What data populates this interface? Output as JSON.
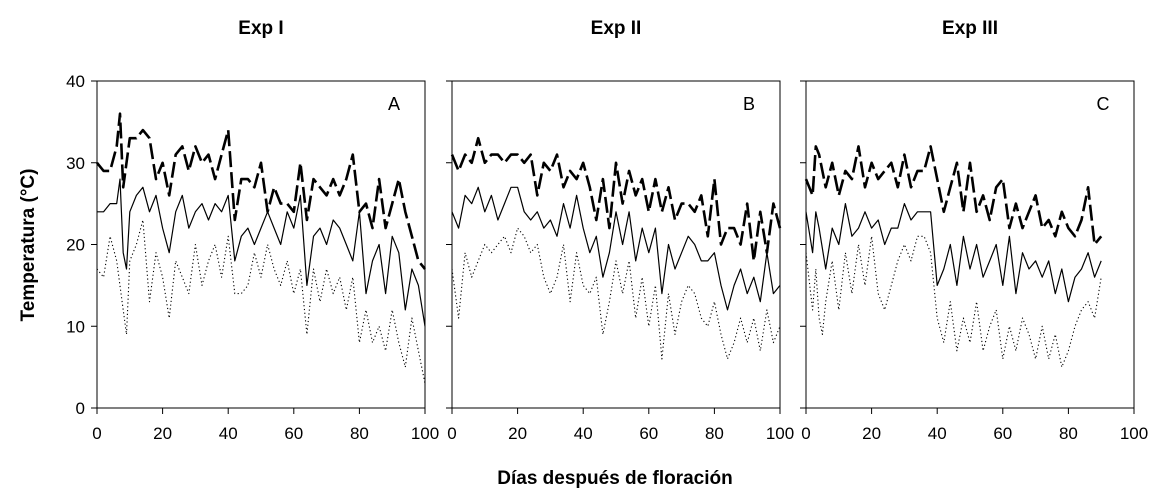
{
  "chart_data": {
    "type": "line",
    "ylabel": "Temperatura (°C)",
    "xlabel": "Días después de floración",
    "ylim": [
      0,
      40
    ],
    "yticks": [
      "0",
      "10",
      "20",
      "30",
      "40"
    ],
    "xticks": [
      "0",
      "20",
      "40",
      "60",
      "80",
      "100"
    ],
    "grid": false,
    "line_styles": {
      "max": "dashed-thick",
      "mean": "solid",
      "min": "dotted"
    },
    "panels": [
      {
        "title": "Exp I",
        "letter": "A",
        "xlim": [
          0,
          100
        ],
        "series": [
          {
            "style": "max",
            "x": [
              0,
              2,
              4,
              6,
              7,
              8,
              10,
              12,
              14,
              16,
              18,
              20,
              22,
              24,
              26,
              28,
              30,
              32,
              34,
              36,
              38,
              40,
              42,
              44,
              46,
              48,
              50,
              52,
              54,
              56,
              58,
              60,
              62,
              64,
              66,
              68,
              70,
              72,
              74,
              76,
              78,
              80,
              82,
              84,
              86,
              88,
              90,
              92,
              94,
              96,
              98,
              100
            ],
            "values": [
              30,
              29,
              29,
              32,
              36,
              27,
              33,
              33,
              34,
              33,
              28,
              30,
              26,
              31,
              32,
              29,
              32,
              30,
              31,
              28,
              31,
              34,
              23,
              28,
              28,
              27,
              30,
              24,
              27,
              25,
              25,
              24,
              30,
              23,
              28,
              27,
              26,
              28,
              26,
              28,
              31,
              24,
              25,
              22,
              28,
              22,
              25,
              28,
              24,
              21,
              18,
              17
            ]
          },
          {
            "style": "mean",
            "x": [
              0,
              2,
              4,
              6,
              7,
              8,
              9,
              10,
              12,
              14,
              16,
              18,
              20,
              22,
              24,
              26,
              28,
              30,
              32,
              34,
              36,
              38,
              40,
              42,
              44,
              46,
              48,
              50,
              52,
              54,
              56,
              58,
              60,
              62,
              64,
              66,
              68,
              70,
              72,
              74,
              76,
              78,
              80,
              82,
              84,
              86,
              88,
              90,
              92,
              94,
              96,
              98,
              100
            ],
            "values": [
              24,
              24,
              25,
              25,
              28,
              19,
              17,
              24,
              26,
              27,
              24,
              26,
              22,
              19,
              24,
              26,
              22,
              24,
              25,
              23,
              25,
              24,
              26,
              18,
              21,
              22,
              20,
              22,
              24,
              22,
              20,
              24,
              22,
              26,
              15,
              21,
              22,
              20,
              23,
              22,
              20,
              18,
              24,
              14,
              18,
              20,
              14,
              21,
              19,
              12,
              17,
              15,
              10
            ]
          },
          {
            "style": "min",
            "x": [
              0,
              2,
              4,
              6,
              8,
              9,
              10,
              12,
              14,
              16,
              18,
              20,
              22,
              24,
              26,
              28,
              30,
              32,
              34,
              36,
              38,
              40,
              42,
              44,
              46,
              48,
              50,
              52,
              54,
              56,
              58,
              60,
              62,
              64,
              66,
              68,
              70,
              72,
              74,
              76,
              78,
              80,
              82,
              84,
              86,
              88,
              90,
              92,
              94,
              96,
              98,
              100
            ],
            "values": [
              17,
              16,
              21,
              18,
              12,
              9,
              18,
              20,
              23,
              13,
              19,
              16,
              11,
              18,
              16,
              14,
              20,
              15,
              18,
              20,
              16,
              21,
              14,
              14,
              15,
              19,
              16,
              20,
              17,
              15,
              18,
              14,
              17,
              9,
              17,
              13,
              17,
              14,
              16,
              12,
              16,
              8,
              12,
              8,
              10,
              7,
              12,
              8,
              5,
              11,
              7,
              3
            ]
          }
        ]
      },
      {
        "title": "Exp II",
        "letter": "B",
        "xlim": [
          0,
          100
        ],
        "series": [
          {
            "style": "max",
            "x": [
              0,
              2,
              4,
              6,
              8,
              10,
              12,
              14,
              16,
              18,
              20,
              22,
              24,
              26,
              28,
              30,
              32,
              34,
              36,
              38,
              40,
              42,
              44,
              46,
              48,
              50,
              52,
              54,
              56,
              58,
              60,
              62,
              64,
              66,
              68,
              70,
              72,
              74,
              76,
              78,
              80,
              82,
              84,
              86,
              88,
              90,
              92,
              94,
              96,
              98,
              100
            ],
            "values": [
              31,
              29,
              31,
              30,
              33,
              30,
              31,
              31,
              30,
              31,
              31,
              30,
              31,
              26,
              30,
              29,
              31,
              27,
              29,
              28,
              30,
              27,
              23,
              28,
              22,
              30,
              25,
              29,
              26,
              28,
              24,
              28,
              24,
              27,
              23,
              25,
              25,
              24,
              26,
              21,
              28,
              20,
              22,
              22,
              20,
              25,
              18,
              24,
              19,
              25,
              22
            ]
          },
          {
            "style": "mean",
            "x": [
              0,
              2,
              4,
              6,
              8,
              10,
              12,
              14,
              16,
              18,
              20,
              22,
              24,
              26,
              28,
              30,
              32,
              34,
              36,
              38,
              40,
              42,
              44,
              46,
              48,
              50,
              52,
              54,
              56,
              58,
              60,
              62,
              64,
              66,
              68,
              70,
              72,
              74,
              76,
              78,
              80,
              82,
              84,
              86,
              88,
              90,
              92,
              94,
              96,
              98,
              100
            ],
            "values": [
              24,
              22,
              26,
              25,
              27,
              24,
              26,
              23,
              25,
              27,
              27,
              24,
              23,
              24,
              22,
              23,
              21,
              25,
              22,
              26,
              22,
              19,
              21,
              16,
              19,
              24,
              20,
              24,
              18,
              22,
              19,
              22,
              14,
              20,
              17,
              19,
              21,
              20,
              18,
              18,
              19,
              15,
              12,
              15,
              17,
              14,
              16,
              13,
              19,
              14,
              15
            ]
          },
          {
            "style": "min",
            "x": [
              0,
              2,
              4,
              6,
              8,
              10,
              12,
              14,
              16,
              18,
              20,
              22,
              24,
              26,
              28,
              30,
              32,
              34,
              36,
              38,
              40,
              42,
              44,
              46,
              48,
              50,
              52,
              54,
              56,
              58,
              60,
              62,
              64,
              66,
              68,
              70,
              72,
              74,
              76,
              78,
              80,
              82,
              84,
              86,
              88,
              90,
              92,
              94,
              96,
              98,
              100
            ],
            "values": [
              17,
              11,
              19,
              16,
              18,
              20,
              19,
              20,
              21,
              19,
              22,
              21,
              19,
              20,
              16,
              14,
              16,
              20,
              13,
              19,
              15,
              14,
              16,
              9,
              13,
              18,
              14,
              18,
              11,
              16,
              10,
              15,
              6,
              14,
              9,
              13,
              15,
              14,
              11,
              10,
              13,
              9,
              6,
              8,
              11,
              8,
              11,
              7,
              12,
              8,
              10
            ]
          }
        ]
      },
      {
        "title": "Exp III",
        "letter": "C",
        "xlim": [
          0,
          100
        ],
        "series": [
          {
            "style": "max",
            "x": [
              0,
              2,
              3,
              4,
              6,
              8,
              10,
              12,
              14,
              16,
              18,
              20,
              22,
              24,
              26,
              28,
              30,
              32,
              34,
              36,
              38,
              40,
              42,
              44,
              46,
              48,
              50,
              52,
              54,
              56,
              58,
              60,
              62,
              64,
              66,
              68,
              70,
              72,
              74,
              76,
              78,
              80,
              82,
              84,
              86,
              88,
              90
            ],
            "values": [
              28,
              26,
              32,
              31,
              27,
              30,
              26,
              29,
              28,
              32,
              27,
              30,
              28,
              29,
              30,
              27,
              31,
              27,
              29,
              29,
              32,
              28,
              24,
              27,
              30,
              24,
              30,
              24,
              26,
              23,
              27,
              28,
              22,
              25,
              22,
              24,
              26,
              22,
              23,
              21,
              24,
              22,
              21,
              23,
              27,
              20,
              21
            ]
          },
          {
            "style": "mean",
            "x": [
              0,
              2,
              3,
              4,
              6,
              8,
              10,
              12,
              14,
              16,
              18,
              20,
              22,
              24,
              26,
              28,
              30,
              32,
              34,
              36,
              38,
              40,
              42,
              44,
              46,
              48,
              50,
              52,
              54,
              56,
              58,
              60,
              62,
              64,
              66,
              68,
              70,
              72,
              74,
              76,
              78,
              80,
              82,
              84,
              86,
              88,
              90
            ],
            "values": [
              24,
              19,
              24,
              22,
              17,
              22,
              20,
              25,
              21,
              22,
              24,
              22,
              23,
              20,
              22,
              22,
              25,
              23,
              24,
              24,
              24,
              15,
              17,
              20,
              15,
              21,
              17,
              20,
              16,
              18,
              20,
              15,
              21,
              14,
              19,
              17,
              18,
              16,
              18,
              14,
              17,
              13,
              16,
              17,
              19,
              16,
              18
            ]
          },
          {
            "style": "min",
            "x": [
              0,
              2,
              3,
              4,
              5,
              6,
              8,
              10,
              12,
              14,
              16,
              18,
              20,
              22,
              24,
              26,
              28,
              30,
              32,
              34,
              36,
              38,
              40,
              42,
              44,
              46,
              48,
              50,
              52,
              54,
              56,
              58,
              60,
              62,
              64,
              66,
              68,
              70,
              72,
              74,
              76,
              78,
              80,
              82,
              84,
              86,
              88,
              90
            ],
            "values": [
              19,
              12,
              17,
              11,
              9,
              13,
              18,
              12,
              19,
              14,
              20,
              15,
              21,
              14,
              12,
              15,
              18,
              20,
              18,
              21,
              21,
              19,
              11,
              8,
              13,
              7,
              11,
              8,
              13,
              7,
              10,
              12,
              6,
              10,
              7,
              11,
              9,
              6,
              10,
              6,
              9,
              5,
              7,
              10,
              12,
              13,
              11,
              16
            ]
          }
        ]
      }
    ]
  }
}
